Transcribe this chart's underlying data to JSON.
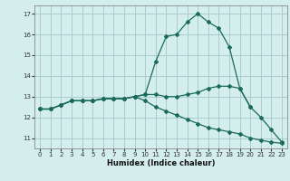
{
  "xlabel": "Humidex (Indice chaleur)",
  "background_color": "#d4eeed",
  "grid_color": "#aacccc",
  "line_color": "#1a6b5a",
  "x_values": [
    0,
    1,
    2,
    3,
    4,
    5,
    6,
    7,
    8,
    9,
    10,
    11,
    12,
    13,
    14,
    15,
    16,
    17,
    18,
    19,
    20,
    21,
    22,
    23
  ],
  "line1": [
    12.4,
    12.4,
    12.6,
    12.8,
    12.8,
    12.8,
    12.9,
    12.9,
    12.9,
    13.0,
    13.1,
    14.7,
    15.9,
    16.0,
    16.6,
    17.0,
    16.6,
    16.3,
    15.4,
    13.4,
    12.5,
    12.0,
    11.4,
    10.8
  ],
  "line2": [
    12.4,
    12.4,
    12.6,
    12.8,
    12.8,
    12.8,
    12.9,
    12.9,
    12.9,
    13.0,
    13.1,
    13.1,
    13.0,
    13.0,
    13.1,
    13.2,
    13.4,
    13.5,
    13.5,
    13.4,
    12.5,
    null,
    null,
    null
  ],
  "line3": [
    12.4,
    12.4,
    12.6,
    12.8,
    12.8,
    12.8,
    12.9,
    12.9,
    12.9,
    13.0,
    12.8,
    12.5,
    12.3,
    12.1,
    11.9,
    11.7,
    11.5,
    11.4,
    11.3,
    11.2,
    11.0,
    10.9,
    10.8,
    10.75
  ],
  "ylim": [
    10.5,
    17.4
  ],
  "xlim": [
    -0.5,
    23.5
  ],
  "yticks": [
    11,
    12,
    13,
    14,
    15,
    16,
    17
  ],
  "xticks": [
    0,
    1,
    2,
    3,
    4,
    5,
    6,
    7,
    8,
    9,
    10,
    11,
    12,
    13,
    14,
    15,
    16,
    17,
    18,
    19,
    20,
    21,
    22,
    23
  ]
}
